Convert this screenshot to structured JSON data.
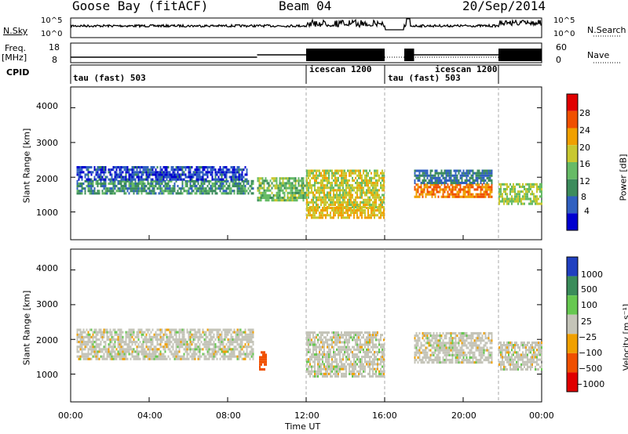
{
  "header": {
    "title": "Goose Bay (fitACF)",
    "beam": "Beam 04",
    "date": "20/Sep/2014"
  },
  "nsky_panel": {
    "label": "N.Sky",
    "left_ticks": [
      "10^5",
      "10^0"
    ],
    "right_ticks": [
      "10^5",
      "10^0"
    ],
    "right_label": "N.Search"
  },
  "freq_panel": {
    "label_line1": "Freq.",
    "label_line2": "[MHz]",
    "left_ticks": [
      "18",
      "8"
    ],
    "right_ticks": [
      "60",
      "0"
    ],
    "right_label": "Nave"
  },
  "cpid_panel": {
    "label": "CPID",
    "segments": [
      "tau (fast) 503",
      "icescan 1200",
      "tau (fast) 503",
      "icescan 1200"
    ]
  },
  "time_axis": {
    "title": "Time UT",
    "ticks": [
      "00:00",
      "04:00",
      "08:00",
      "12:00",
      "16:00",
      "20:00",
      "00:00"
    ]
  },
  "colors": {
    "power": [
      "#0000d0",
      "#3060c0",
      "#3c8c5c",
      "#66bb66",
      "#c8c830",
      "#f0a000",
      "#f05000",
      "#e00000"
    ],
    "velocity": [
      "#2040c0",
      "#3a8c5a",
      "#66c850",
      "#c4c4b8",
      "#f0a000",
      "#f05000",
      "#e00000"
    ]
  },
  "chart_data": [
    {
      "type": "heatmap",
      "name": "power",
      "ylabel": "Slant Range [km]",
      "y_ticks": [
        "1000",
        "2000",
        "3000",
        "4000"
      ],
      "ylim": [
        200,
        4600
      ],
      "xlim": [
        0,
        24
      ],
      "colorbar_label": "Power [dB]",
      "colorbar_ticks": [
        "4",
        "8",
        "12",
        "16",
        "20",
        "24",
        "28"
      ],
      "clim": [
        0,
        32
      ],
      "echo_bands": [
        {
          "t0": 0.3,
          "t1": 9.3,
          "r0": 1500,
          "r1": 1900,
          "level": 10
        },
        {
          "t0": 0.3,
          "t1": 9.0,
          "r0": 1900,
          "r1": 2300,
          "level": 5
        },
        {
          "t0": 9.5,
          "t1": 12.0,
          "r0": 1300,
          "r1": 2000,
          "level": 14
        },
        {
          "t0": 12.0,
          "t1": 16.0,
          "r0": 1100,
          "r1": 2200,
          "level": 18
        },
        {
          "t0": 12.0,
          "t1": 16.0,
          "r0": 800,
          "r1": 1100,
          "level": 20
        },
        {
          "t0": 17.5,
          "t1": 21.5,
          "r0": 1400,
          "r1": 1800,
          "level": 24
        },
        {
          "t0": 17.5,
          "t1": 21.5,
          "r0": 1800,
          "r1": 2200,
          "level": 8
        },
        {
          "t0": 21.8,
          "t1": 24.0,
          "r0": 1200,
          "r1": 1800,
          "level": 16
        }
      ]
    },
    {
      "type": "heatmap",
      "name": "velocity",
      "ylabel": "Slant Range [km]",
      "y_ticks": [
        "1000",
        "2000",
        "3000",
        "4000"
      ],
      "ylim": [
        200,
        4600
      ],
      "xlim": [
        0,
        24
      ],
      "colorbar_label": "Velocity [m s⁻¹]",
      "colorbar_ticks": [
        "1000",
        "500",
        "100",
        "25",
        "−25",
        "−100",
        "−500",
        "−1000"
      ],
      "clim": [
        -1000,
        1000
      ],
      "echo_bands": [
        {
          "t0": 0.3,
          "t1": 9.3,
          "r0": 1400,
          "r1": 2300,
          "level": 0
        },
        {
          "t0": 9.6,
          "t1": 10.0,
          "r0": 1100,
          "r1": 1600,
          "level": -400
        },
        {
          "t0": 12.0,
          "t1": 16.0,
          "r0": 900,
          "r1": 2200,
          "level": 0
        },
        {
          "t0": 17.5,
          "t1": 21.5,
          "r0": 1300,
          "r1": 2200,
          "level": 0
        },
        {
          "t0": 21.8,
          "t1": 24.0,
          "r0": 1100,
          "r1": 1900,
          "level": 0
        }
      ]
    }
  ]
}
